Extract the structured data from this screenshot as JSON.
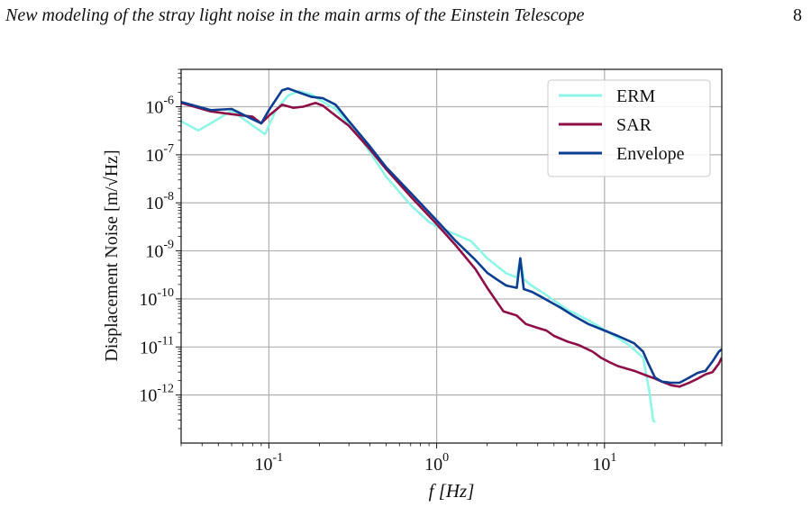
{
  "header": {
    "title": "New modeling of the stray light noise in the main arms of the Einstein Telescope",
    "page_number": "8"
  },
  "chart_data": {
    "type": "line",
    "title": "",
    "xlabel": "f [Hz]",
    "ylabel": "Displacement Noise [m/√Hz]",
    "xscale": "log",
    "yscale": "log",
    "xlim": [
      0.03,
      50
    ],
    "ylim": [
      1e-13,
      6e-06
    ],
    "grid": true,
    "legend_position": "top-right",
    "x_ticks": [
      {
        "value": 0.1,
        "base": "10",
        "exp": "-1"
      },
      {
        "value": 1,
        "base": "10",
        "exp": "0"
      },
      {
        "value": 10,
        "base": "10",
        "exp": "1"
      }
    ],
    "y_ticks": [
      {
        "value": 1e-06,
        "base": "10",
        "exp": "-6"
      },
      {
        "value": 1e-07,
        "base": "10",
        "exp": "-7"
      },
      {
        "value": 1e-08,
        "base": "10",
        "exp": "-8"
      },
      {
        "value": 1e-09,
        "base": "10",
        "exp": "-9"
      },
      {
        "value": 1e-10,
        "base": "10",
        "exp": "-10"
      },
      {
        "value": 1e-11,
        "base": "10",
        "exp": "-11"
      },
      {
        "value": 1e-12,
        "base": "10",
        "exp": "-12"
      }
    ],
    "series": [
      {
        "name": "ERM",
        "color": "#8ff5e6",
        "x": [
          0.03,
          0.038,
          0.045,
          0.06,
          0.085,
          0.095,
          0.11,
          0.13,
          0.15,
          0.18,
          0.2,
          0.25,
          0.35,
          0.5,
          0.7,
          0.9,
          1.0,
          1.3,
          1.6,
          2.0,
          2.6,
          3.0,
          3.15,
          3.3,
          3.6,
          4.5,
          6,
          8,
          10,
          14,
          17,
          18.5,
          19.5,
          20
        ],
        "y": [
          5e-07,
          3.2e-07,
          4.5e-07,
          8.3e-07,
          3.5e-07,
          2.7e-07,
          8.5e-07,
          1.7e-06,
          2.1e-06,
          1.8e-06,
          1.4e-06,
          9e-07,
          2.3e-07,
          3.5e-08,
          9e-09,
          4e-09,
          3.2e-09,
          2.2e-09,
          1.6e-09,
          7e-10,
          3.4e-10,
          2.8e-10,
          7e-10,
          2.6e-10,
          2e-10,
          1.2e-10,
          6e-11,
          3.6e-11,
          2.3e-11,
          1.1e-11,
          6e-12,
          1.2e-12,
          3e-13,
          2.7e-13
        ]
      },
      {
        "name": "SAR",
        "color": "#8e0e47",
        "x": [
          0.03,
          0.045,
          0.06,
          0.08,
          0.09,
          0.1,
          0.12,
          0.14,
          0.16,
          0.19,
          0.21,
          0.25,
          0.3,
          0.4,
          0.5,
          0.7,
          1.0,
          1.3,
          1.7,
          2.0,
          2.5,
          3.0,
          3.4,
          4.0,
          4.5,
          5,
          6,
          7,
          8.5,
          9.5,
          10.5,
          12,
          15,
          18,
          20,
          22,
          25,
          28,
          32,
          36,
          40,
          44,
          48,
          50
        ],
        "y": [
          1.2e-06,
          8e-07,
          7e-07,
          6.2e-07,
          4.5e-07,
          6.5e-07,
          1.1e-06,
          9.5e-07,
          1e-06,
          1.2e-06,
          1.05e-06,
          6.5e-07,
          4e-07,
          1.3e-07,
          5e-08,
          1.35e-08,
          3.6e-09,
          1.3e-09,
          4.2e-10,
          1.7e-10,
          5.5e-11,
          4.5e-11,
          3e-11,
          2.5e-11,
          2.2e-11,
          1.7e-11,
          1.3e-11,
          1.1e-11,
          8e-12,
          6e-12,
          5e-12,
          4e-12,
          3.2e-12,
          2.5e-12,
          2.2e-12,
          1.9e-12,
          1.6e-12,
          1.5e-12,
          1.8e-12,
          2.2e-12,
          2.7e-12,
          3e-12,
          4.5e-12,
          6e-12
        ]
      },
      {
        "name": "Envelope",
        "color": "#0b3d91",
        "x": [
          0.03,
          0.045,
          0.06,
          0.08,
          0.09,
          0.1,
          0.12,
          0.13,
          0.15,
          0.18,
          0.21,
          0.25,
          0.3,
          0.4,
          0.5,
          0.7,
          1.0,
          1.3,
          1.7,
          2.0,
          2.3,
          2.6,
          3.0,
          3.15,
          3.3,
          3.7,
          4.2,
          4.8,
          5.5,
          6.5,
          8,
          10,
          12,
          15,
          17,
          18,
          20,
          22,
          25,
          28,
          32,
          36,
          40,
          44,
          48,
          50
        ],
        "y": [
          1.25e-06,
          8.5e-07,
          9e-07,
          5.5e-07,
          4.5e-07,
          8.5e-07,
          2.2e-06,
          2.4e-06,
          2e-06,
          1.6e-06,
          1.5e-06,
          1.1e-06,
          5e-07,
          1.5e-07,
          5.5e-08,
          1.6e-08,
          4.3e-09,
          1.6e-09,
          6.5e-10,
          3.5e-10,
          2.5e-10,
          1.9e-10,
          1.7e-10,
          7e-10,
          1.6e-10,
          1.4e-10,
          1.1e-10,
          8.5e-11,
          6.5e-11,
          4.5e-11,
          3e-11,
          2.2e-11,
          1.7e-11,
          1.2e-11,
          8e-12,
          5e-12,
          2.3e-12,
          1.9e-12,
          1.8e-12,
          1.8e-12,
          2.3e-12,
          2.9e-12,
          3.2e-12,
          5e-12,
          8e-12,
          9e-12
        ]
      }
    ]
  }
}
